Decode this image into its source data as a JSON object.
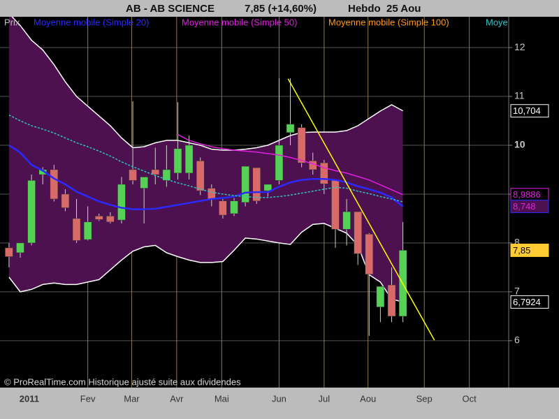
{
  "chart_data": {
    "type": "candlestick",
    "title": "AB - AB SCIENCE",
    "price": "7,85 (+14,60%)",
    "period": "Hebdo  25 Aou",
    "price_label": "Prix",
    "credit": "© ProRealTime.com Historique ajusté suite aux dividendes",
    "open": [
      7.9,
      7.8,
      8.0,
      9.4,
      9.5,
      9.0,
      8.5,
      8.07,
      8.55,
      8.55,
      8.47,
      9.5,
      9.12,
      9.5,
      9.28,
      9.43,
      9.43,
      9.68,
      9.12,
      8.86,
      8.6,
      8.83,
      9.54,
      9.07,
      9.28,
      10.26,
      10.36,
      9.68,
      9.64,
      9.28,
      8.28,
      8.64,
      8.18,
      6.69,
      7.14,
      6.5
    ],
    "high": [
      8.0,
      8.0,
      9.4,
      9.55,
      9.6,
      9.1,
      8.9,
      8.75,
      8.6,
      8.63,
      9.35,
      10.9,
      9.35,
      9.95,
      10.0,
      10.88,
      10.2,
      9.75,
      9.2,
      8.9,
      8.92,
      9.57,
      9.54,
      9.2,
      11.37,
      11.37,
      10.43,
      9.85,
      9.7,
      9.3,
      8.9,
      8.64,
      8.2,
      7.11,
      7.5,
      8.43
    ],
    "low": [
      7.5,
      7.7,
      7.95,
      9.2,
      8.85,
      8.65,
      8.0,
      8.05,
      8.45,
      8.4,
      8.4,
      9.2,
      8.4,
      9.2,
      9.15,
      9.3,
      9.3,
      8.98,
      8.75,
      8.5,
      8.55,
      8.75,
      8.8,
      8.95,
      9.2,
      10.0,
      9.55,
      9.4,
      9.0,
      7.9,
      7.95,
      7.55,
      6.1,
      6.38,
      6.38,
      6.38
    ],
    "close": [
      7.72,
      8.0,
      9.28,
      9.5,
      8.9,
      8.72,
      8.05,
      8.43,
      8.48,
      8.43,
      9.2,
      9.28,
      9.35,
      9.4,
      9.5,
      9.93,
      10.0,
      9.07,
      8.9,
      8.57,
      8.86,
      9.57,
      8.86,
      9.2,
      10.0,
      10.43,
      9.64,
      9.5,
      9.21,
      8.28,
      8.64,
      7.78,
      7.36,
      7.11,
      6.5,
      7.85
    ],
    "close_label": "7,85",
    "up_color": "#55d255",
    "down_color": "#d86a6a",
    "series": [
      {
        "name": "Moyenne mobile (Simple 20)",
        "color": "#2a2aff",
        "values": [
          10.0,
          9.85,
          9.6,
          9.48,
          9.32,
          9.2,
          9.05,
          8.95,
          8.85,
          8.78,
          8.72,
          8.69,
          8.69,
          8.7,
          8.74,
          8.78,
          8.82,
          8.86,
          8.9,
          8.92,
          8.95,
          9.03,
          9.04,
          9.04,
          9.15,
          9.24,
          9.29,
          9.31,
          9.31,
          9.29,
          9.24,
          9.16,
          9.1,
          9.03,
          8.93,
          8.748
        ],
        "last_label": "8,748"
      },
      {
        "name": "Moyenne mobile (Simple 50)",
        "color": "#e020e0",
        "values": [
          null,
          null,
          null,
          null,
          null,
          null,
          null,
          null,
          null,
          null,
          null,
          null,
          null,
          null,
          null,
          10.22,
          10.1,
          10.03,
          9.97,
          9.93,
          9.9,
          9.88,
          9.86,
          9.83,
          9.8,
          9.75,
          9.69,
          9.62,
          9.54,
          9.48,
          9.43,
          9.36,
          9.29,
          9.19,
          9.09,
          8.9886
        ],
        "last_label": "8,9886"
      },
      {
        "name": "Moyenne mobile (Simple 100)",
        "color": "#ff9a1a",
        "values": [
          null,
          null,
          null,
          null,
          null,
          null,
          null,
          null,
          null,
          null,
          null,
          null,
          null,
          null,
          null,
          null,
          null,
          null,
          null,
          null,
          null,
          null,
          null,
          null,
          null,
          null,
          null,
          null,
          null,
          null,
          null,
          null,
          null,
          null,
          null,
          null
        ]
      },
      {
        "name": "Moye",
        "color": "#2ec4c4",
        "dashed": true,
        "values": [
          10.62,
          10.5,
          10.4,
          10.33,
          10.25,
          10.15,
          10.05,
          9.97,
          9.88,
          9.78,
          9.66,
          9.56,
          9.47,
          9.38,
          9.3,
          9.23,
          9.17,
          9.1,
          9.04,
          9.0,
          8.97,
          8.95,
          8.93,
          8.93,
          8.95,
          8.98,
          9.02,
          9.06,
          9.1,
          9.14,
          9.12,
          9.06,
          9.01,
          8.95,
          8.9,
          8.84
        ]
      }
    ],
    "bands": {
      "color": "#ffffff",
      "fill": "#4d1150",
      "upper": [
        12.7,
        12.45,
        12.15,
        11.95,
        11.65,
        11.3,
        11.0,
        10.8,
        10.6,
        10.4,
        10.15,
        9.95,
        9.97,
        10.05,
        10.1,
        10.1,
        10.05,
        10.0,
        9.92,
        9.9,
        9.9,
        9.92,
        9.95,
        10.0,
        10.1,
        10.2,
        10.26,
        10.27,
        10.27,
        10.27,
        10.3,
        10.4,
        10.55,
        10.7,
        10.83,
        10.704
      ],
      "lower": [
        7.3,
        7.0,
        7.05,
        7.15,
        7.18,
        7.15,
        7.15,
        7.2,
        7.25,
        7.45,
        7.65,
        7.83,
        7.92,
        7.95,
        7.8,
        7.72,
        7.65,
        7.6,
        7.6,
        7.62,
        7.85,
        8.1,
        8.08,
        8.04,
        8.0,
        7.97,
        8.22,
        8.38,
        8.4,
        8.3,
        8.2,
        7.95,
        7.35,
        7.2,
        6.85,
        6.7924
      ],
      "upper_label": "10,704",
      "lower_label": "6,7924"
    },
    "trendline": {
      "color": "#ffff00",
      "x": [
        24.8,
        37.8
      ],
      "values": [
        11.36,
        6.01
      ]
    },
    "xlim": [
      -0.8,
      44.4
    ],
    "xticks": [
      {
        "value": 1.8,
        "label": "2011"
      },
      {
        "value": 7.0,
        "label": "Fev"
      },
      {
        "value": 10.9,
        "label": "Mar"
      },
      {
        "value": 14.9,
        "label": "Avr"
      },
      {
        "value": 18.9,
        "label": "Mai"
      },
      {
        "value": 24.0,
        "label": "Jun"
      },
      {
        "value": 28.0,
        "label": "Jul"
      },
      {
        "value": 31.9,
        "label": "Aou"
      },
      {
        "value": 36.9,
        "label": "Sep"
      },
      {
        "value": 40.9,
        "label": "Oct"
      }
    ],
    "ylim": [
      5.04,
      12.63
    ],
    "yticks": [
      6,
      7,
      8,
      9,
      10,
      11,
      12
    ]
  }
}
